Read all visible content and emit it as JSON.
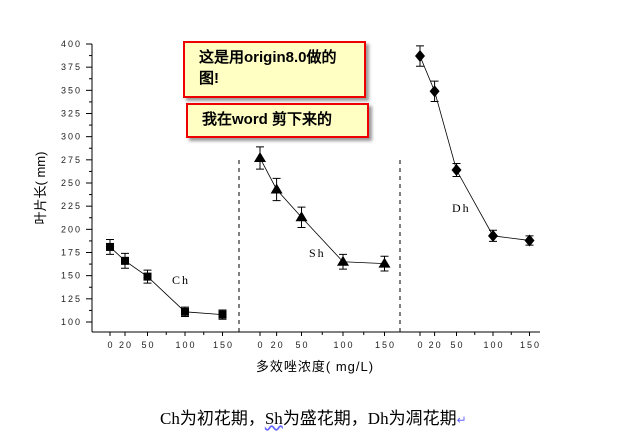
{
  "callouts": [
    "这是用origin8.0做的图!",
    "我在word 剪下来的"
  ],
  "caption": {
    "parts": [
      "Ch为初花期，",
      "Sh",
      "为盛花期，Dh为凋花期"
    ],
    "mark": "↵"
  },
  "chart_data": {
    "type": "line",
    "title": "",
    "ylabel": "叶片长( mm)",
    "xlabel": "多效唑浓度( mg/L)",
    "ylim": [
      100,
      400
    ],
    "yticks": [
      100,
      125,
      150,
      175,
      200,
      225,
      250,
      275,
      300,
      325,
      350,
      375,
      400
    ],
    "xticks": [
      0,
      20,
      50,
      100,
      150
    ],
    "panels": [
      {
        "name": "Ch",
        "marker": "square",
        "x": [
          0,
          20,
          50,
          100,
          150
        ],
        "y": [
          181,
          166,
          149,
          111,
          108
        ],
        "err": [
          8,
          8,
          7,
          5,
          5
        ]
      },
      {
        "name": "Sh",
        "marker": "triangle",
        "x": [
          0,
          20,
          50,
          100,
          150
        ],
        "y": [
          277,
          243,
          213,
          165,
          163
        ],
        "err": [
          12,
          12,
          11,
          8,
          8
        ]
      },
      {
        "name": "Dh",
        "marker": "diamond",
        "x": [
          0,
          20,
          50,
          100,
          150
        ],
        "y": [
          387,
          349,
          264,
          193,
          188
        ],
        "err": [
          11,
          11,
          7,
          6,
          5
        ]
      }
    ]
  }
}
